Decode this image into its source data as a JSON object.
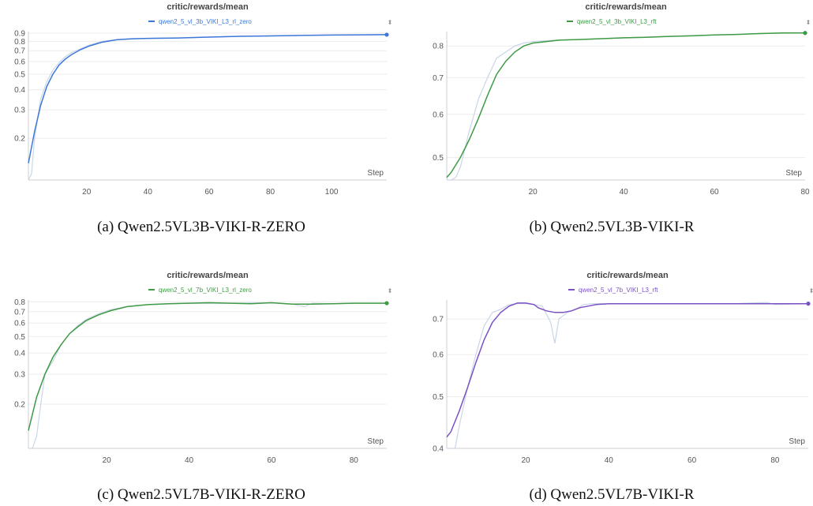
{
  "chart_data": [
    {
      "type": "line",
      "title": "critic/rewards/mean",
      "xlabel": "Step",
      "ylabel": "",
      "xlim": [
        1,
        118
      ],
      "ylim": [
        0.11,
        0.92
      ],
      "y_scale": "log",
      "x_ticks": [
        20,
        40,
        60,
        80,
        100
      ],
      "y_ticks": [
        0.2,
        0.3,
        0.4,
        0.5,
        0.6,
        0.7,
        0.8,
        0.9
      ],
      "grid": true,
      "legend_position": "top-center",
      "caption": "(a) Qwen2.5VL3B-VIKI-R-ZERO",
      "series": [
        {
          "name": "qwen2_5_vl_3b_VIKI_L3_rl_zero",
          "color": "#3d78d8",
          "x": [
            1,
            3,
            5,
            7,
            9,
            11,
            13,
            15,
            18,
            21,
            25,
            30,
            35,
            40,
            50,
            60,
            70,
            80,
            90,
            100,
            110,
            118
          ],
          "y": [
            0.14,
            0.22,
            0.32,
            0.42,
            0.5,
            0.57,
            0.62,
            0.66,
            0.71,
            0.75,
            0.79,
            0.82,
            0.83,
            0.835,
            0.84,
            0.85,
            0.86,
            0.865,
            0.87,
            0.875,
            0.878,
            0.88
          ]
        },
        {
          "name": "",
          "color": "#c9d6e8",
          "x": [
            1,
            2,
            3,
            5,
            7,
            9,
            11,
            13,
            15,
            18,
            21,
            25,
            30,
            35,
            40,
            50,
            60,
            70,
            80,
            90,
            100,
            110,
            118
          ],
          "y": [
            0.11,
            0.12,
            0.2,
            0.35,
            0.45,
            0.53,
            0.59,
            0.64,
            0.68,
            0.72,
            0.76,
            0.8,
            0.82,
            0.83,
            0.835,
            0.84,
            0.85,
            0.86,
            0.865,
            0.87,
            0.875,
            0.878,
            0.88
          ]
        }
      ]
    },
    {
      "type": "line",
      "title": "critic/rewards/mean",
      "xlabel": "Step",
      "ylabel": "",
      "xlim": [
        1,
        80
      ],
      "ylim": [
        0.455,
        0.85
      ],
      "y_scale": "log",
      "x_ticks": [
        20,
        40,
        60,
        80
      ],
      "y_ticks": [
        0.5,
        0.6,
        0.7,
        0.8
      ],
      "grid": true,
      "legend_position": "top-center",
      "caption": "(b) Qwen2.5VL3B-VIKI-R",
      "series": [
        {
          "name": "qwen2_5_vl_3b_VIKI_L3_rft",
          "color": "#3f9a46",
          "x": [
            1,
            2,
            4,
            6,
            8,
            10,
            12,
            14,
            16,
            18,
            20,
            23,
            26,
            30,
            35,
            40,
            45,
            50,
            55,
            60,
            65,
            70,
            75,
            80
          ],
          "y": [
            0.46,
            0.47,
            0.5,
            0.54,
            0.59,
            0.65,
            0.71,
            0.75,
            0.78,
            0.8,
            0.81,
            0.815,
            0.82,
            0.822,
            0.825,
            0.828,
            0.83,
            0.833,
            0.835,
            0.838,
            0.84,
            0.843,
            0.845,
            0.845
          ]
        },
        {
          "name": "",
          "color": "#c9d6e8",
          "x": [
            1,
            2,
            3,
            4,
            6,
            8,
            10,
            12,
            14,
            16,
            18,
            20,
            25,
            30,
            40,
            50,
            60,
            70,
            80
          ],
          "y": [
            0.455,
            0.455,
            0.46,
            0.48,
            0.56,
            0.64,
            0.7,
            0.76,
            0.78,
            0.8,
            0.81,
            0.815,
            0.82,
            0.822,
            0.828,
            0.833,
            0.838,
            0.843,
            0.845
          ]
        }
      ]
    },
    {
      "type": "line",
      "title": "critic/rewards/mean",
      "xlabel": "Step",
      "ylabel": "",
      "xlim": [
        1,
        88
      ],
      "ylim": [
        0.11,
        0.82
      ],
      "y_scale": "log",
      "x_ticks": [
        20,
        40,
        60,
        80
      ],
      "y_ticks": [
        0.2,
        0.3,
        0.4,
        0.5,
        0.6,
        0.7,
        0.8
      ],
      "grid": true,
      "legend_position": "top-center",
      "caption": "(c) Qwen2.5VL7B-VIKI-R-ZERO",
      "series": [
        {
          "name": "qwen2_5_vl_7b_VIKI_L3_rl_zero",
          "color": "#3f9a46",
          "x": [
            1,
            3,
            5,
            7,
            9,
            11,
            13,
            15,
            18,
            21,
            25,
            30,
            35,
            40,
            45,
            50,
            55,
            60,
            65,
            70,
            75,
            80,
            88
          ],
          "y": [
            0.14,
            0.22,
            0.3,
            0.38,
            0.45,
            0.52,
            0.57,
            0.62,
            0.67,
            0.71,
            0.75,
            0.77,
            0.78,
            0.785,
            0.79,
            0.785,
            0.78,
            0.79,
            0.775,
            0.775,
            0.78,
            0.785,
            0.785
          ]
        },
        {
          "name": "",
          "color": "#c9d6e8",
          "x": [
            1,
            2,
            3,
            4,
            5,
            7,
            9,
            11,
            13,
            15,
            18,
            21,
            25,
            30,
            40,
            50,
            60,
            65,
            68,
            70,
            75,
            80,
            88
          ],
          "y": [
            0.11,
            0.11,
            0.13,
            0.2,
            0.3,
            0.36,
            0.45,
            0.52,
            0.58,
            0.63,
            0.68,
            0.72,
            0.75,
            0.77,
            0.785,
            0.785,
            0.79,
            0.775,
            0.75,
            0.785,
            0.78,
            0.785,
            0.785
          ]
        }
      ]
    },
    {
      "type": "line",
      "title": "critic/rewards/mean",
      "xlabel": "Step",
      "ylabel": "",
      "xlim": [
        1,
        88
      ],
      "ylim": [
        0.4,
        0.76
      ],
      "y_scale": "log",
      "x_ticks": [
        20,
        40,
        60,
        80
      ],
      "y_ticks": [
        0.4,
        0.5,
        0.6,
        0.7
      ],
      "grid": true,
      "legend_position": "top-center",
      "caption": "(d) Qwen2.5VL7B-VIKI-R",
      "series": [
        {
          "name": "qwen2_5_vl_7b_VIKI_L3_rft",
          "color": "#7b52c4",
          "x": [
            1,
            2,
            4,
            6,
            8,
            10,
            12,
            14,
            16,
            18,
            20,
            22,
            23,
            25,
            27,
            29,
            31,
            33,
            35,
            37,
            40,
            50,
            60,
            70,
            80,
            88
          ],
          "y": [
            0.42,
            0.43,
            0.47,
            0.52,
            0.58,
            0.64,
            0.69,
            0.72,
            0.74,
            0.75,
            0.75,
            0.745,
            0.735,
            0.725,
            0.72,
            0.72,
            0.725,
            0.735,
            0.74,
            0.745,
            0.748,
            0.748,
            0.748,
            0.748,
            0.748,
            0.748
          ]
        },
        {
          "name": "",
          "color": "#c9d6e8",
          "x": [
            1,
            2,
            3,
            4,
            6,
            8,
            10,
            12,
            14,
            16,
            18,
            20,
            22,
            24,
            26,
            27,
            28,
            30,
            32,
            34,
            36,
            40,
            50,
            60,
            70,
            78,
            80,
            88
          ],
          "y": [
            0.4,
            0.4,
            0.4,
            0.44,
            0.52,
            0.6,
            0.68,
            0.72,
            0.73,
            0.745,
            0.748,
            0.748,
            0.745,
            0.74,
            0.69,
            0.63,
            0.7,
            0.72,
            0.73,
            0.745,
            0.748,
            0.748,
            0.748,
            0.748,
            0.748,
            0.752,
            0.745,
            0.748
          ]
        }
      ]
    }
  ]
}
